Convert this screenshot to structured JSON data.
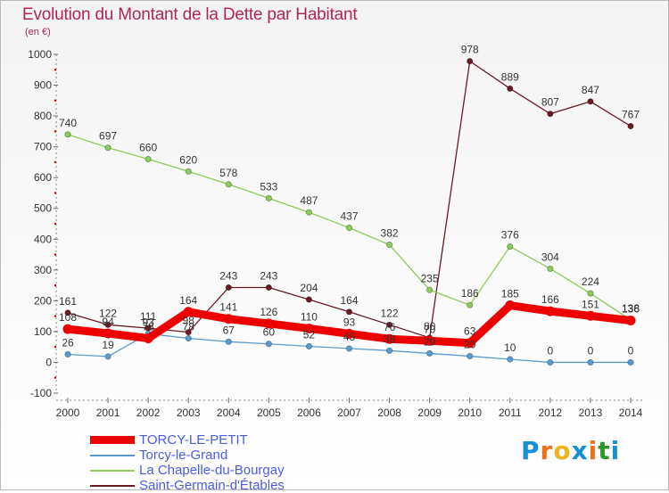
{
  "title": "Evolution du Montant de la Dette par Habitant",
  "subtitle": "(en €)",
  "logo": {
    "text": "Proxiti",
    "colors": [
      "#1a8fd6",
      "#e8731a",
      "#f2b21a",
      "#1a8fd6",
      "#e8731a",
      "#2a9a2a",
      "#1a8fd6"
    ]
  },
  "chart_data": {
    "type": "line",
    "x": [
      2000,
      2001,
      2002,
      2003,
      2004,
      2005,
      2006,
      2007,
      2008,
      2009,
      2010,
      2011,
      2012,
      2013,
      2014
    ],
    "ylim": [
      -100,
      1000
    ],
    "yticks": [
      -100,
      0,
      100,
      200,
      300,
      400,
      500,
      600,
      700,
      800,
      900,
      1000
    ],
    "grid": false,
    "legend_position": "bottom-left",
    "series": [
      {
        "name": "Saint-Germain-d'Étables",
        "color": "#6b1a22",
        "values": [
          161,
          122,
          111,
          98,
          243,
          243,
          204,
          164,
          122,
          80,
          978,
          889,
          807,
          847,
          767
        ],
        "labels": [
          "161",
          "122",
          "111",
          "98",
          "243",
          "243",
          "204",
          "164",
          "122",
          "80",
          "978",
          "889",
          "807",
          "847",
          "767"
        ]
      },
      {
        "name": "La Chapelle-du-Bourgay",
        "color": "#8ccc5a",
        "values": [
          740,
          697,
          660,
          620,
          578,
          533,
          487,
          437,
          382,
          235,
          186,
          376,
          304,
          224,
          138
        ],
        "labels": [
          "740",
          "697",
          "660",
          "620",
          "578",
          "533",
          "487",
          "437",
          "382",
          "235",
          "186",
          "376",
          "304",
          "224",
          "138"
        ]
      },
      {
        "name": "Torcy-le-Grand",
        "color": "#5b9bd0",
        "values": [
          26,
          19,
          93,
          78,
          67,
          60,
          52,
          45,
          38,
          29,
          20,
          10,
          0,
          0,
          0
        ],
        "labels": [
          "26",
          "19",
          "93",
          "78",
          "67",
          "60",
          "52",
          "45",
          "38",
          "29",
          "20",
          "10",
          "0",
          "0",
          "0"
        ]
      },
      {
        "name": "TORCY-LE-PETIT",
        "color": "#ee0000",
        "values": [
          108,
          94,
          78,
          164,
          141,
          126,
          110,
          93,
          76,
          70,
          63,
          185,
          166,
          151,
          136
        ],
        "labels": [
          "108",
          "94",
          "78",
          "164",
          "141",
          "126",
          "110",
          "93",
          "76",
          "70",
          "63",
          "185",
          "166",
          "151",
          "136"
        ]
      }
    ],
    "legend_order": [
      "TORCY-LE-PETIT",
      "Torcy-le-Grand",
      "La Chapelle-du-Bourgay",
      "Saint-Germain-d'Étables"
    ]
  }
}
